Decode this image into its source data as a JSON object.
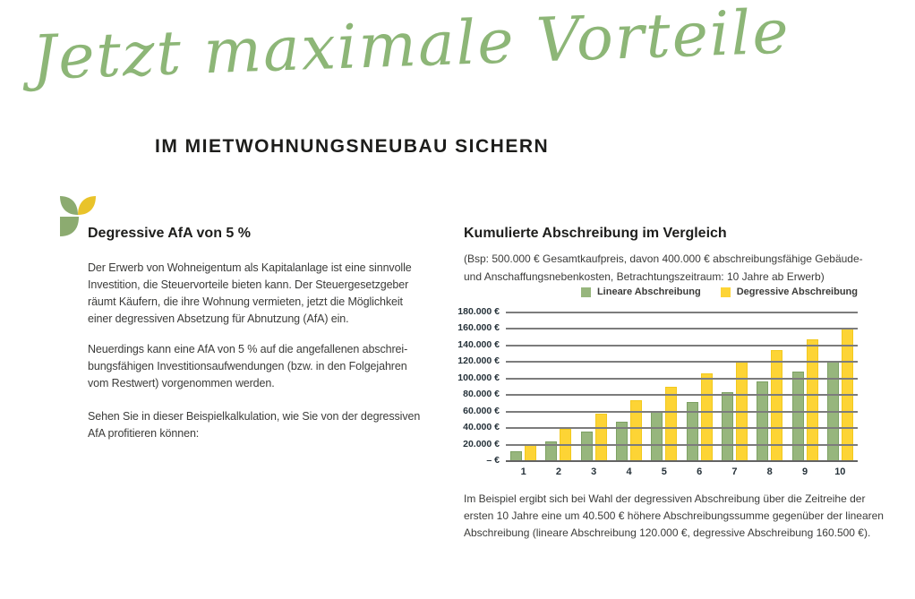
{
  "header": {
    "script_title": "Jetzt maximale Vorteile",
    "subtitle": "IM MIETWOHNUNGSNEUBAU SICHERN"
  },
  "left": {
    "heading": "Degressive AfA von 5 %",
    "paragraphs": [
      {
        "lines": [
          "Der Erwerb von Wohneigentum als Kapitalanlage ist eine sinnvolle",
          "Investition, die Steuervorteile bieten kann. Der Steuergesetzgeber",
          "räumt Käufern, die ihre Wohnung vermieten, jetzt die Möglichkeit",
          "einer degressiven Absetzung für Abnutzung (AfA) ein."
        ]
      },
      {
        "lines": [
          "Neuerdings kann eine AfA von 5 % auf die angefallenen abschrei-",
          "bungsfähigen Investitionsaufwendungen (bzw. in den Folgejahren",
          "vom Restwert) vorgenommen werden."
        ]
      },
      {
        "lines": [
          "Sehen Sie in dieser Beispielkalkulation, wie Sie von der degressiven",
          "AfA profitieren können:"
        ]
      }
    ]
  },
  "right": {
    "chart_heading": "Kumulierte Abschreibung im Vergleich",
    "chart_subtitle_lines": [
      "(Bsp: 500.000 € Gesamtkaufpreis, davon 400.000 € abschreibungsfähige Gebäude-",
      "und Anschaffungsnebenkosten, Betrachtungszeitraum: 10 Jahre ab Erwerb)"
    ],
    "footnote_lines": [
      "Im Beispiel ergibt sich bei Wahl der degressiven Abschreibung über die Zeitreihe der",
      "ersten 10 Jahre eine um 40.500 € höhere Abschreibungssumme gegenüber der linearen",
      "Abschreibung (lineare Abschreibung 120.000 €, degressive Abschreibung 160.500 €)."
    ]
  },
  "chart_data": {
    "type": "bar",
    "title": "Kumulierte Abschreibung im Vergleich",
    "categories": [
      "1",
      "2",
      "3",
      "4",
      "5",
      "6",
      "7",
      "8",
      "9",
      "10"
    ],
    "series": [
      {
        "name": "Lineare Abschreibung",
        "fill_color": "#97b67d",
        "edge_color": "#7da163",
        "values": [
          12000,
          24000,
          36000,
          48000,
          60000,
          72000,
          84000,
          96000,
          108000,
          120000
        ]
      },
      {
        "name": "Degressive Abschreibung",
        "fill_color": "#fdd435",
        "edge_color": "#f2c91e",
        "values": [
          20000,
          39000,
          57050,
          74198,
          90488,
          105963,
          120665,
          134632,
          147900,
          160500
        ]
      }
    ],
    "xlabel": "",
    "ylabel": "",
    "ylim": [
      0,
      180000
    ],
    "grid": true,
    "gridline_color": "#7c7c7c",
    "legend_position": "top-right",
    "y_ticks": [
      "180.000 €",
      "160.000 €",
      "140.000 €",
      "120.000 €",
      "100.000 €",
      "80.000 €",
      "60.000 €",
      "40.000 €",
      "20.000 €",
      "– €"
    ]
  },
  "colors": {
    "script_title_green": "#8db677",
    "logo_green": "#8cab70",
    "logo_yellow": "#e9c32a",
    "heading_dark": "#1d1d1b",
    "body_text": "#3b3b39",
    "tick_text": "#26323a"
  }
}
